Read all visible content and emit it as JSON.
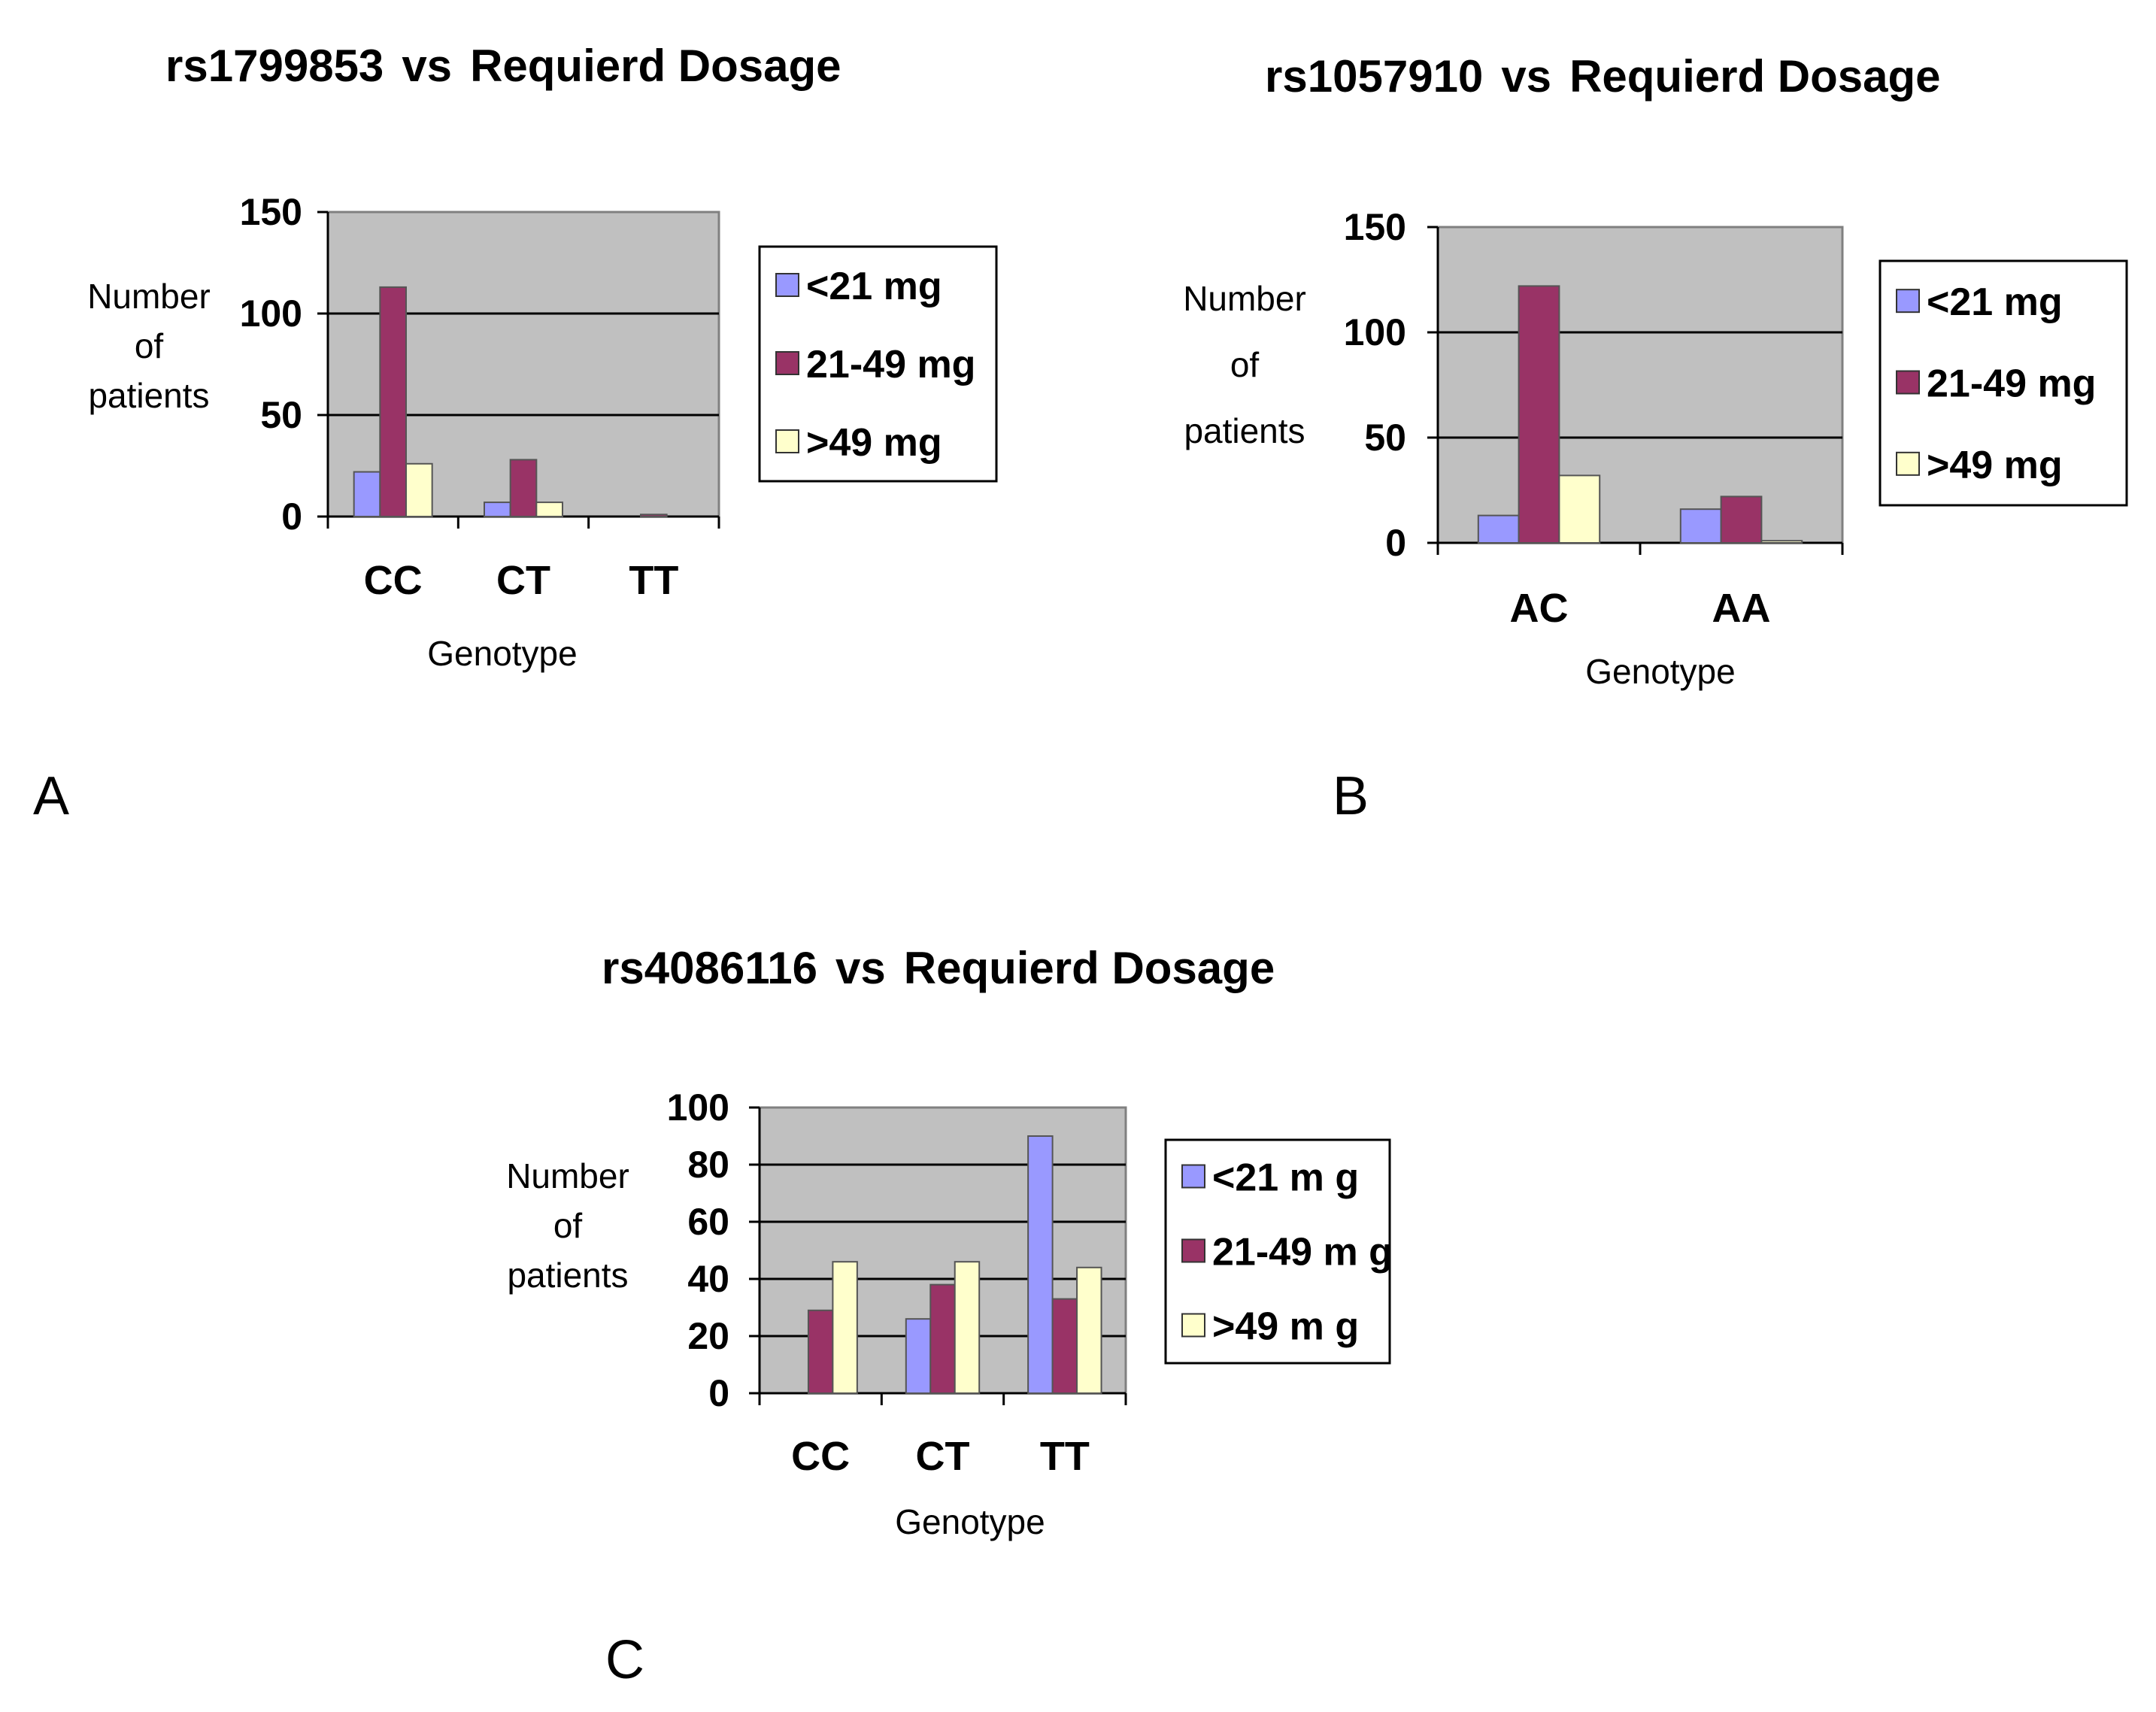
{
  "figure": {
    "panel_labels": [
      "A",
      "B",
      "C"
    ]
  },
  "series_colors": [
    "#9999ff",
    "#993366",
    "#ffffcc"
  ],
  "chart_data": [
    {
      "type": "bar",
      "title_id": "rs1799853",
      "title_rest": "Requierd Dosage",
      "title_vs": "vs",
      "xlabel": "Genotype",
      "ylabel_lines": [
        "Number",
        "of",
        "patients"
      ],
      "categories": [
        "CC",
        "CT",
        "TT"
      ],
      "ylim": [
        0,
        150
      ],
      "yticks": [
        0,
        50,
        100,
        150
      ],
      "grid": true,
      "legend": "right",
      "series": [
        {
          "name": "<21 mg",
          "values": [
            22,
            7,
            0
          ]
        },
        {
          "name": "21-49 mg",
          "values": [
            113,
            28,
            1
          ]
        },
        {
          "name": ">49 mg",
          "values": [
            26,
            7,
            0
          ]
        }
      ]
    },
    {
      "type": "bar",
      "title_id": "rs1057910",
      "title_rest": "Requierd Dosage",
      "title_vs": "vs",
      "xlabel": "Genotype",
      "ylabel_lines": [
        "Number",
        "of",
        "patients"
      ],
      "categories": [
        "AC",
        "AA"
      ],
      "ylim": [
        0,
        150
      ],
      "yticks": [
        0,
        50,
        100,
        150
      ],
      "grid": true,
      "legend": "right",
      "series": [
        {
          "name": "<21 mg",
          "values": [
            13,
            16
          ]
        },
        {
          "name": "21-49 mg",
          "values": [
            122,
            22
          ]
        },
        {
          "name": ">49 mg",
          "values": [
            32,
            1
          ]
        }
      ]
    },
    {
      "type": "bar",
      "title_id": "rs4086116",
      "title_rest": "Requierd Dosage",
      "title_vs": "vs",
      "xlabel": "Genotype",
      "ylabel_lines": [
        "Number",
        "of",
        "patients"
      ],
      "categories": [
        "CC",
        "CT",
        "TT"
      ],
      "ylim": [
        0,
        100
      ],
      "yticks": [
        0,
        20,
        40,
        60,
        80,
        100
      ],
      "grid": true,
      "legend": "right",
      "series": [
        {
          "name": "<21 m g",
          "values": [
            0,
            26,
            90
          ]
        },
        {
          "name": "21-49 m g",
          "values": [
            29,
            38,
            33
          ]
        },
        {
          "name": ">49 m g",
          "values": [
            46,
            46,
            44
          ]
        }
      ]
    }
  ]
}
